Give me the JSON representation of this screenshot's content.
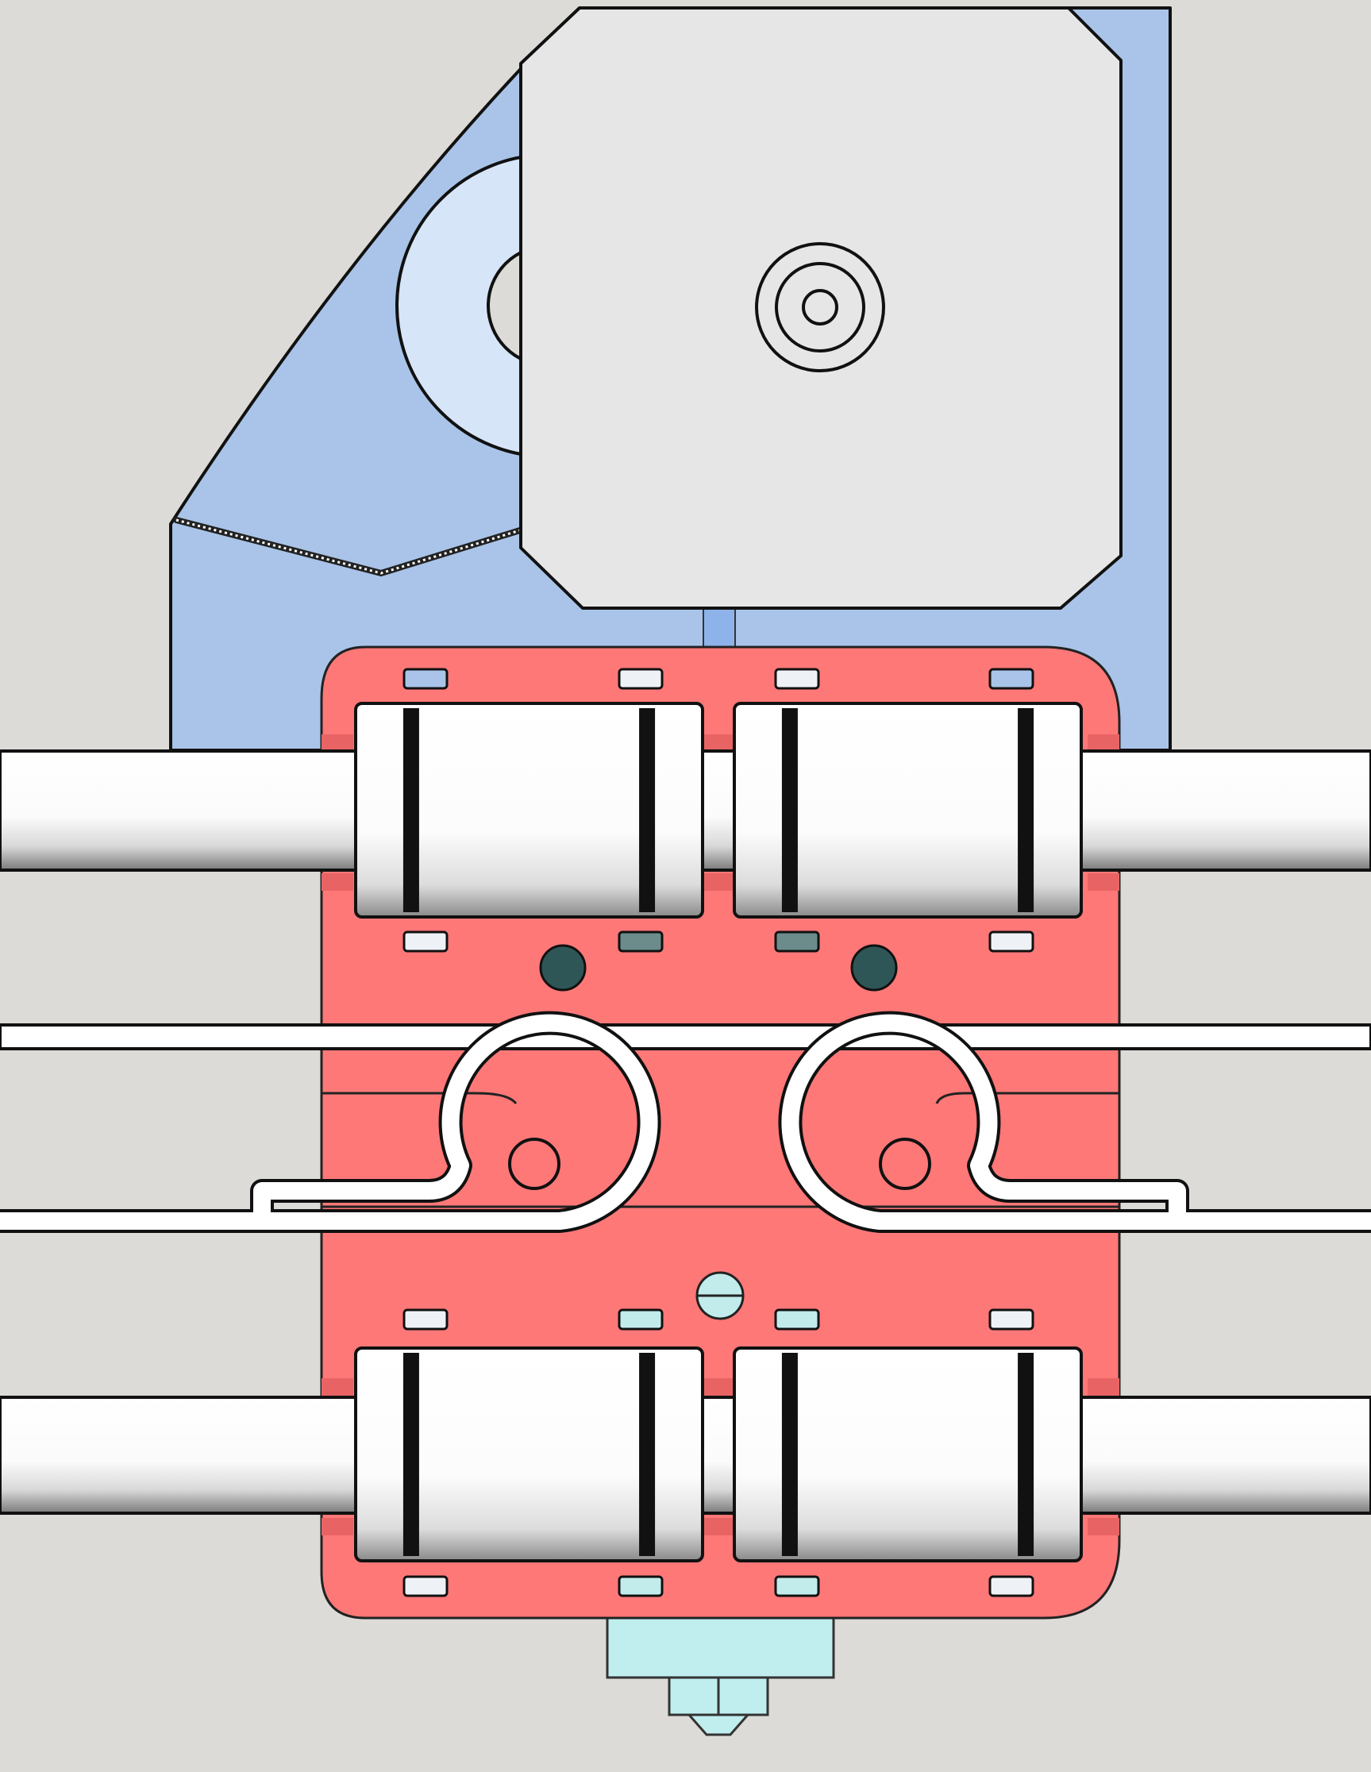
{
  "diagram": {
    "subject": "x-carriage-assembly",
    "colors": {
      "background": "#dddbd7",
      "motor_mount": "#a9c4e8",
      "pulley": "#d6e5f8",
      "motor_face": "#e6e6e6",
      "carriage": "#ff7878",
      "carriage_dark": "#e86464",
      "rod": "#ffffff",
      "bearing": "#ffffff",
      "slot_light": "#eef2f6",
      "slot_cyan": "#c2ecec",
      "slot_blue": "#a9c4e8",
      "hole": "#2f5656",
      "hotend": "#c0eeee",
      "outline": "#111111"
    },
    "parts": [
      "motor-mount-bracket",
      "stepper-motor",
      "gt2-pulley",
      "x-carriage-plate",
      "upper-smooth-rod",
      "lower-smooth-rod",
      "linear-bearing",
      "belt",
      "belt-clamp",
      "hotend-nozzle"
    ]
  }
}
